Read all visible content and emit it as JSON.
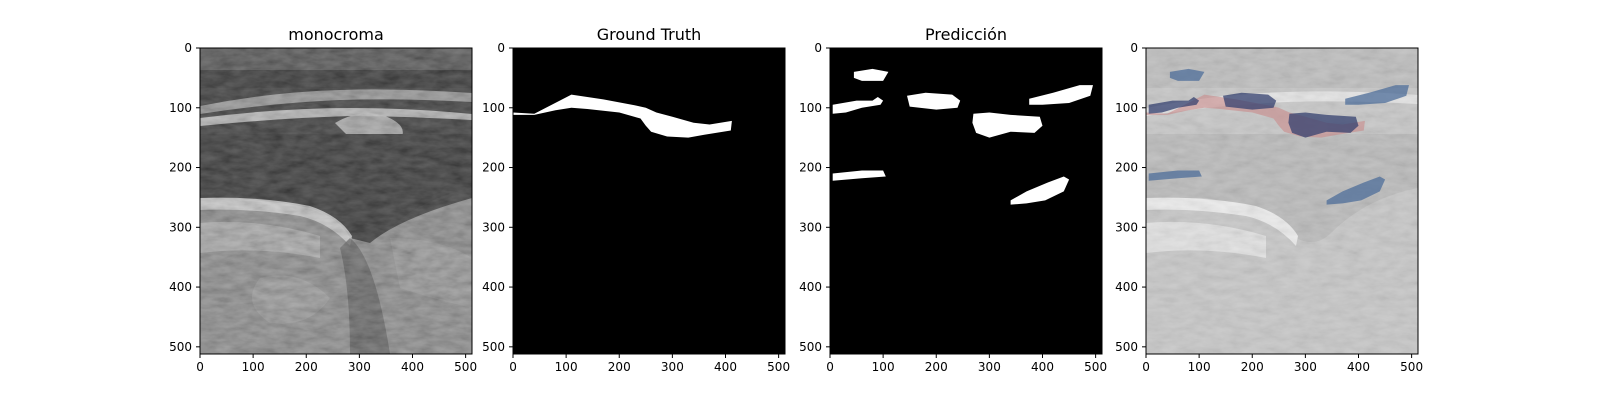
{
  "figure": {
    "panels": [
      {
        "title": "monocroma"
      },
      {
        "title": "Ground Truth"
      },
      {
        "title": "Predicción"
      },
      {
        "title": ""
      }
    ],
    "colors": {
      "background": "#ffffff",
      "mask_bg": "#000000",
      "mask_fg": "#ffffff",
      "overlay_gt": "#c98a8a",
      "overlay_pred": "#34406f",
      "overlay_pred_light": "#4e6e9a"
    }
  },
  "chart_data": {
    "type": "image-grid",
    "image_size": [
      512,
      512
    ],
    "x_ticks": [
      0,
      100,
      200,
      300,
      400,
      500
    ],
    "y_ticks": [
      0,
      100,
      200,
      300,
      400,
      500
    ],
    "xlim": [
      0,
      512
    ],
    "ylim": [
      512,
      0
    ],
    "ground_truth_region": [
      [
        0,
        108
      ],
      [
        40,
        110
      ],
      [
        110,
        78
      ],
      [
        170,
        86
      ],
      [
        230,
        96
      ],
      [
        250,
        100
      ],
      [
        270,
        108
      ],
      [
        300,
        115
      ],
      [
        340,
        125
      ],
      [
        370,
        128
      ],
      [
        412,
        122
      ],
      [
        410,
        138
      ],
      [
        360,
        145
      ],
      [
        330,
        150
      ],
      [
        290,
        148
      ],
      [
        260,
        140
      ],
      [
        250,
        130
      ],
      [
        240,
        118
      ],
      [
        200,
        108
      ],
      [
        170,
        105
      ],
      [
        140,
        102
      ],
      [
        110,
        100
      ],
      [
        80,
        104
      ],
      [
        40,
        112
      ],
      [
        0,
        112
      ]
    ],
    "prediction_regions": [
      [
        [
          45,
          40
        ],
        [
          80,
          35
        ],
        [
          110,
          40
        ],
        [
          100,
          55
        ],
        [
          60,
          55
        ],
        [
          45,
          50
        ]
      ],
      [
        [
          5,
          95
        ],
        [
          50,
          88
        ],
        [
          80,
          88
        ],
        [
          90,
          82
        ],
        [
          100,
          88
        ],
        [
          95,
          95
        ],
        [
          60,
          100
        ],
        [
          30,
          108
        ],
        [
          5,
          110
        ]
      ],
      [
        [
          145,
          80
        ],
        [
          180,
          75
        ],
        [
          230,
          78
        ],
        [
          245,
          88
        ],
        [
          240,
          100
        ],
        [
          200,
          103
        ],
        [
          150,
          98
        ]
      ],
      [
        [
          270,
          110
        ],
        [
          300,
          108
        ],
        [
          340,
          112
        ],
        [
          395,
          115
        ],
        [
          400,
          130
        ],
        [
          385,
          142
        ],
        [
          340,
          140
        ],
        [
          300,
          150
        ],
        [
          275,
          142
        ],
        [
          268,
          125
        ]
      ],
      [
        [
          375,
          85
        ],
        [
          420,
          75
        ],
        [
          470,
          62
        ],
        [
          495,
          62
        ],
        [
          490,
          80
        ],
        [
          450,
          92
        ],
        [
          400,
          95
        ],
        [
          375,
          95
        ]
      ],
      [
        [
          5,
          210
        ],
        [
          60,
          205
        ],
        [
          100,
          205
        ],
        [
          105,
          215
        ],
        [
          60,
          218
        ],
        [
          5,
          222
        ]
      ],
      [
        [
          340,
          255
        ],
        [
          370,
          240
        ],
        [
          410,
          225
        ],
        [
          440,
          215
        ],
        [
          450,
          220
        ],
        [
          440,
          240
        ],
        [
          405,
          255
        ],
        [
          370,
          260
        ],
        [
          340,
          262
        ]
      ]
    ]
  }
}
